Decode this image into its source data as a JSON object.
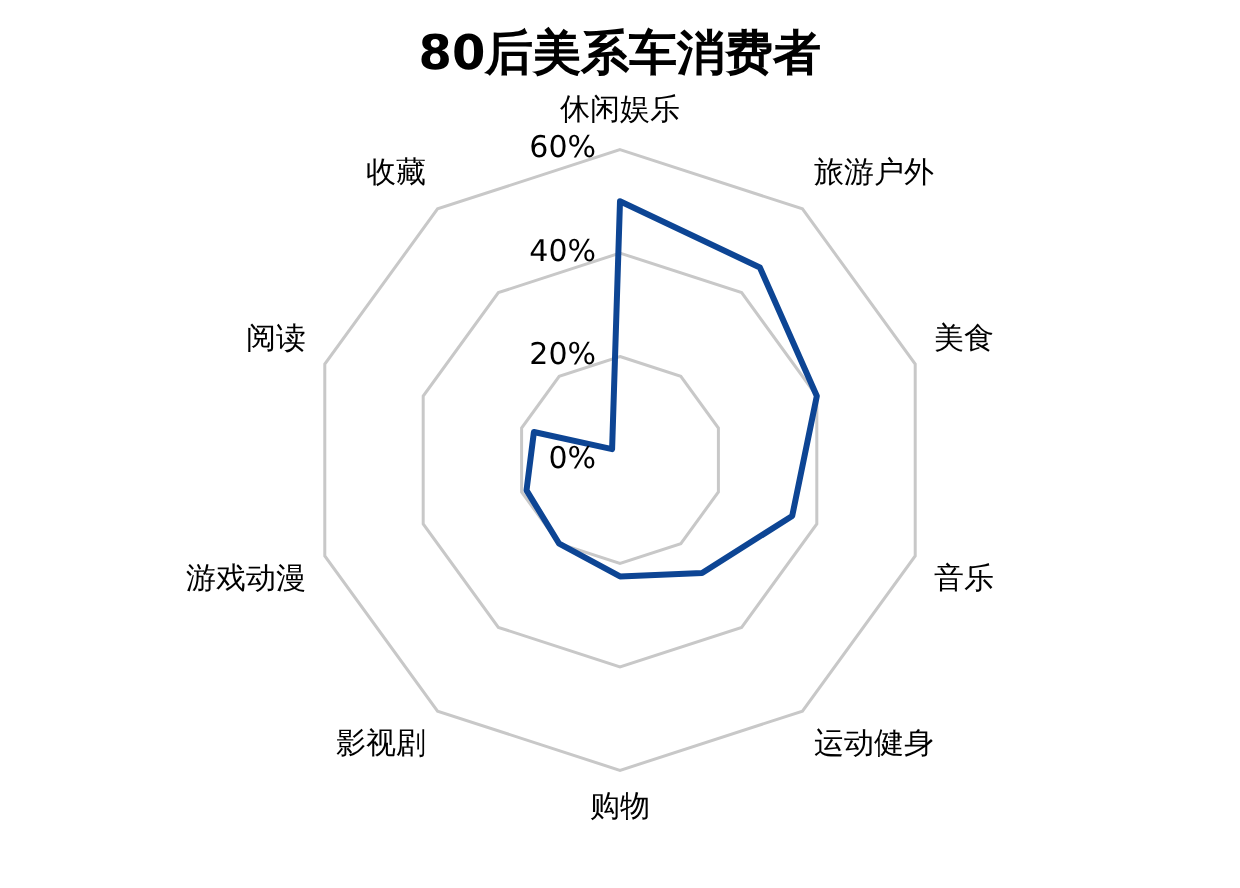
{
  "chart_data": {
    "type": "radar",
    "title": "80后美系车消费者",
    "categories": [
      "休闲娱乐",
      "旅游户外",
      "美食",
      "音乐",
      "运动健身",
      "购物",
      "影视剧",
      "游戏动漫",
      "阅读",
      "收藏"
    ],
    "series": [
      {
        "color": "#0d4594",
        "values": [
          50,
          46,
          40,
          35,
          27,
          22.5,
          20,
          19,
          17.5,
          2.6
        ]
      }
    ],
    "ylim": [
      0,
      60
    ],
    "yticks": [
      {
        "value": 0,
        "label": "0%"
      },
      {
        "value": 20,
        "label": "20%"
      },
      {
        "value": 40,
        "label": "40%"
      },
      {
        "value": 60,
        "label": "60%"
      }
    ],
    "grid": true,
    "marker": "none",
    "legend": false
  }
}
